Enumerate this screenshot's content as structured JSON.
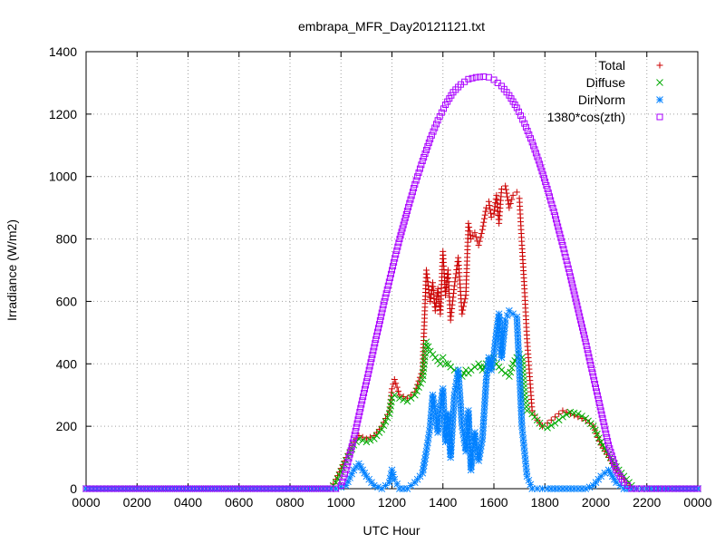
{
  "chart_data": {
    "type": "scatter",
    "title": "embrapa_MFR_Day20121121.txt",
    "xlabel": "UTC Hour",
    "ylabel": "Irradiance (W/m2)",
    "xlim": [
      0,
      24
    ],
    "ylim": [
      0,
      1400
    ],
    "x_ticks": [
      0,
      2,
      4,
      6,
      8,
      10,
      12,
      14,
      16,
      18,
      20,
      22,
      24
    ],
    "x_tick_labels": [
      "0000",
      "0200",
      "0400",
      "0600",
      "0800",
      "1000",
      "1200",
      "1400",
      "1600",
      "1800",
      "2000",
      "2200",
      "0000"
    ],
    "y_ticks": [
      0,
      200,
      400,
      600,
      800,
      1000,
      1200,
      1400
    ],
    "y_tick_labels": [
      "0",
      "200",
      "400",
      "600",
      "800",
      "1000",
      "1200",
      "1400"
    ],
    "grid": true,
    "legend_position": "top-right",
    "series": [
      {
        "name": "Total",
        "color": "#cc0000",
        "marker": "plus",
        "x": [
          0,
          2,
          4,
          6,
          8,
          9.6,
          9.8,
          10.2,
          10.5,
          10.7,
          11.0,
          11.3,
          11.6,
          11.9,
          12.0,
          12.1,
          12.3,
          12.6,
          12.9,
          13.2,
          13.35,
          13.5,
          13.6,
          13.7,
          13.8,
          13.9,
          14.0,
          14.1,
          14.2,
          14.3,
          14.45,
          14.6,
          14.75,
          14.9,
          15.0,
          15.1,
          15.25,
          15.4,
          15.55,
          15.7,
          15.8,
          15.9,
          16.0,
          16.1,
          16.2,
          16.3,
          16.45,
          16.6,
          16.75,
          16.9,
          17.0,
          17.1,
          17.2,
          17.3,
          17.5,
          17.7,
          17.9,
          18.1,
          18.4,
          18.7,
          19.0,
          19.3,
          19.6,
          19.9,
          20.2,
          20.5,
          20.8,
          21.1,
          21.4,
          21.6,
          22.0,
          23,
          24
        ],
        "y": [
          0,
          0,
          0,
          0,
          0,
          0,
          30,
          100,
          150,
          170,
          160,
          170,
          200,
          250,
          320,
          350,
          300,
          290,
          310,
          380,
          700,
          600,
          660,
          570,
          640,
          560,
          760,
          620,
          700,
          540,
          650,
          740,
          560,
          620,
          850,
          800,
          820,
          780,
          830,
          900,
          920,
          870,
          880,
          940,
          850,
          960,
          970,
          900,
          940,
          950,
          930,
          780,
          640,
          480,
          250,
          220,
          200,
          210,
          230,
          250,
          240,
          230,
          220,
          200,
          140,
          100,
          60,
          30,
          0,
          0,
          0,
          0,
          0
        ]
      },
      {
        "name": "Diffuse",
        "color": "#00aa00",
        "marker": "cross",
        "x": [
          0,
          2,
          4,
          6,
          8,
          9.6,
          9.8,
          10.2,
          10.5,
          10.7,
          11.0,
          11.3,
          11.6,
          11.9,
          12.0,
          12.1,
          12.3,
          12.6,
          12.9,
          13.2,
          13.35,
          13.5,
          13.6,
          13.7,
          13.8,
          13.9,
          14.0,
          14.1,
          14.2,
          14.3,
          14.45,
          14.6,
          14.75,
          14.9,
          15.0,
          15.1,
          15.25,
          15.4,
          15.55,
          15.7,
          15.8,
          15.9,
          16.0,
          16.1,
          16.2,
          16.3,
          16.45,
          16.6,
          16.75,
          16.9,
          17.0,
          17.1,
          17.2,
          17.3,
          17.5,
          17.7,
          17.9,
          18.1,
          18.4,
          18.7,
          19.0,
          19.3,
          19.6,
          19.9,
          20.2,
          20.5,
          20.8,
          21.1,
          21.4,
          21.6,
          22.0,
          23,
          24
        ],
        "y": [
          0,
          0,
          0,
          0,
          0,
          0,
          20,
          90,
          140,
          160,
          150,
          160,
          190,
          240,
          290,
          300,
          290,
          280,
          300,
          350,
          470,
          440,
          430,
          420,
          410,
          400,
          420,
          400,
          400,
          390,
          380,
          370,
          360,
          380,
          370,
          380,
          390,
          400,
          380,
          400,
          410,
          390,
          420,
          400,
          390,
          380,
          370,
          360,
          400,
          420,
          430,
          420,
          300,
          250,
          240,
          220,
          200,
          195,
          210,
          230,
          245,
          240,
          225,
          200,
          150,
          110,
          70,
          40,
          10,
          0,
          0,
          0,
          0
        ]
      },
      {
        "name": "DirNorm",
        "color": "#0080ff",
        "marker": "star",
        "x": [
          0,
          2,
          4,
          6,
          8,
          9.6,
          9.8,
          10.2,
          10.5,
          10.7,
          11.0,
          11.3,
          11.6,
          11.9,
          12.0,
          12.1,
          12.3,
          12.6,
          12.9,
          13.2,
          13.35,
          13.5,
          13.6,
          13.7,
          13.8,
          13.9,
          14.0,
          14.1,
          14.2,
          14.3,
          14.45,
          14.6,
          14.75,
          14.9,
          15.0,
          15.1,
          15.25,
          15.4,
          15.55,
          15.7,
          15.8,
          15.9,
          16.0,
          16.1,
          16.2,
          16.3,
          16.45,
          16.6,
          16.75,
          16.9,
          17.0,
          17.1,
          17.2,
          17.3,
          17.5,
          17.7,
          17.9,
          18.1,
          18.4,
          18.7,
          19.0,
          19.3,
          19.6,
          19.9,
          20.2,
          20.5,
          20.8,
          21.1,
          21.4,
          21.6,
          22.0,
          23,
          24
        ],
        "y": [
          0,
          0,
          0,
          0,
          0,
          0,
          0,
          10,
          60,
          80,
          40,
          10,
          0,
          20,
          60,
          30,
          0,
          0,
          20,
          50,
          120,
          200,
          300,
          250,
          180,
          260,
          320,
          150,
          240,
          100,
          300,
          380,
          200,
          120,
          250,
          60,
          180,
          90,
          160,
          350,
          420,
          380,
          430,
          500,
          560,
          420,
          540,
          570,
          560,
          550,
          380,
          200,
          120,
          40,
          0,
          0,
          0,
          0,
          0,
          0,
          0,
          0,
          0,
          10,
          40,
          60,
          20,
          0,
          0,
          0,
          0,
          0,
          0
        ]
      },
      {
        "name": "1380*cos(zth)",
        "color": "#aa00ff",
        "marker": "square",
        "x": [
          0,
          2,
          4,
          6,
          8,
          9.6,
          9.8,
          10.0,
          10.2,
          10.5,
          10.8,
          11.1,
          11.4,
          11.7,
          12.0,
          12.3,
          12.6,
          12.9,
          13.2,
          13.5,
          13.8,
          14.1,
          14.4,
          14.7,
          15.0,
          15.3,
          15.6,
          15.8,
          16.0,
          16.3,
          16.6,
          16.9,
          17.2,
          17.5,
          17.8,
          18.1,
          18.4,
          18.7,
          19.0,
          19.3,
          19.6,
          19.9,
          20.2,
          20.5,
          20.8,
          21.1,
          21.4,
          21.7,
          21.9,
          22.0,
          22.2,
          23,
          24
        ],
        "y": [
          0,
          0,
          0,
          0,
          0,
          0,
          0,
          10,
          60,
          160,
          270,
          380,
          490,
          600,
          700,
          800,
          890,
          975,
          1050,
          1120,
          1180,
          1230,
          1270,
          1295,
          1312,
          1318,
          1320,
          1318,
          1310,
          1290,
          1260,
          1220,
          1170,
          1110,
          1040,
          960,
          875,
          780,
          680,
          575,
          470,
          360,
          250,
          140,
          60,
          20,
          0,
          0,
          0,
          0,
          0,
          0,
          0
        ]
      }
    ]
  }
}
